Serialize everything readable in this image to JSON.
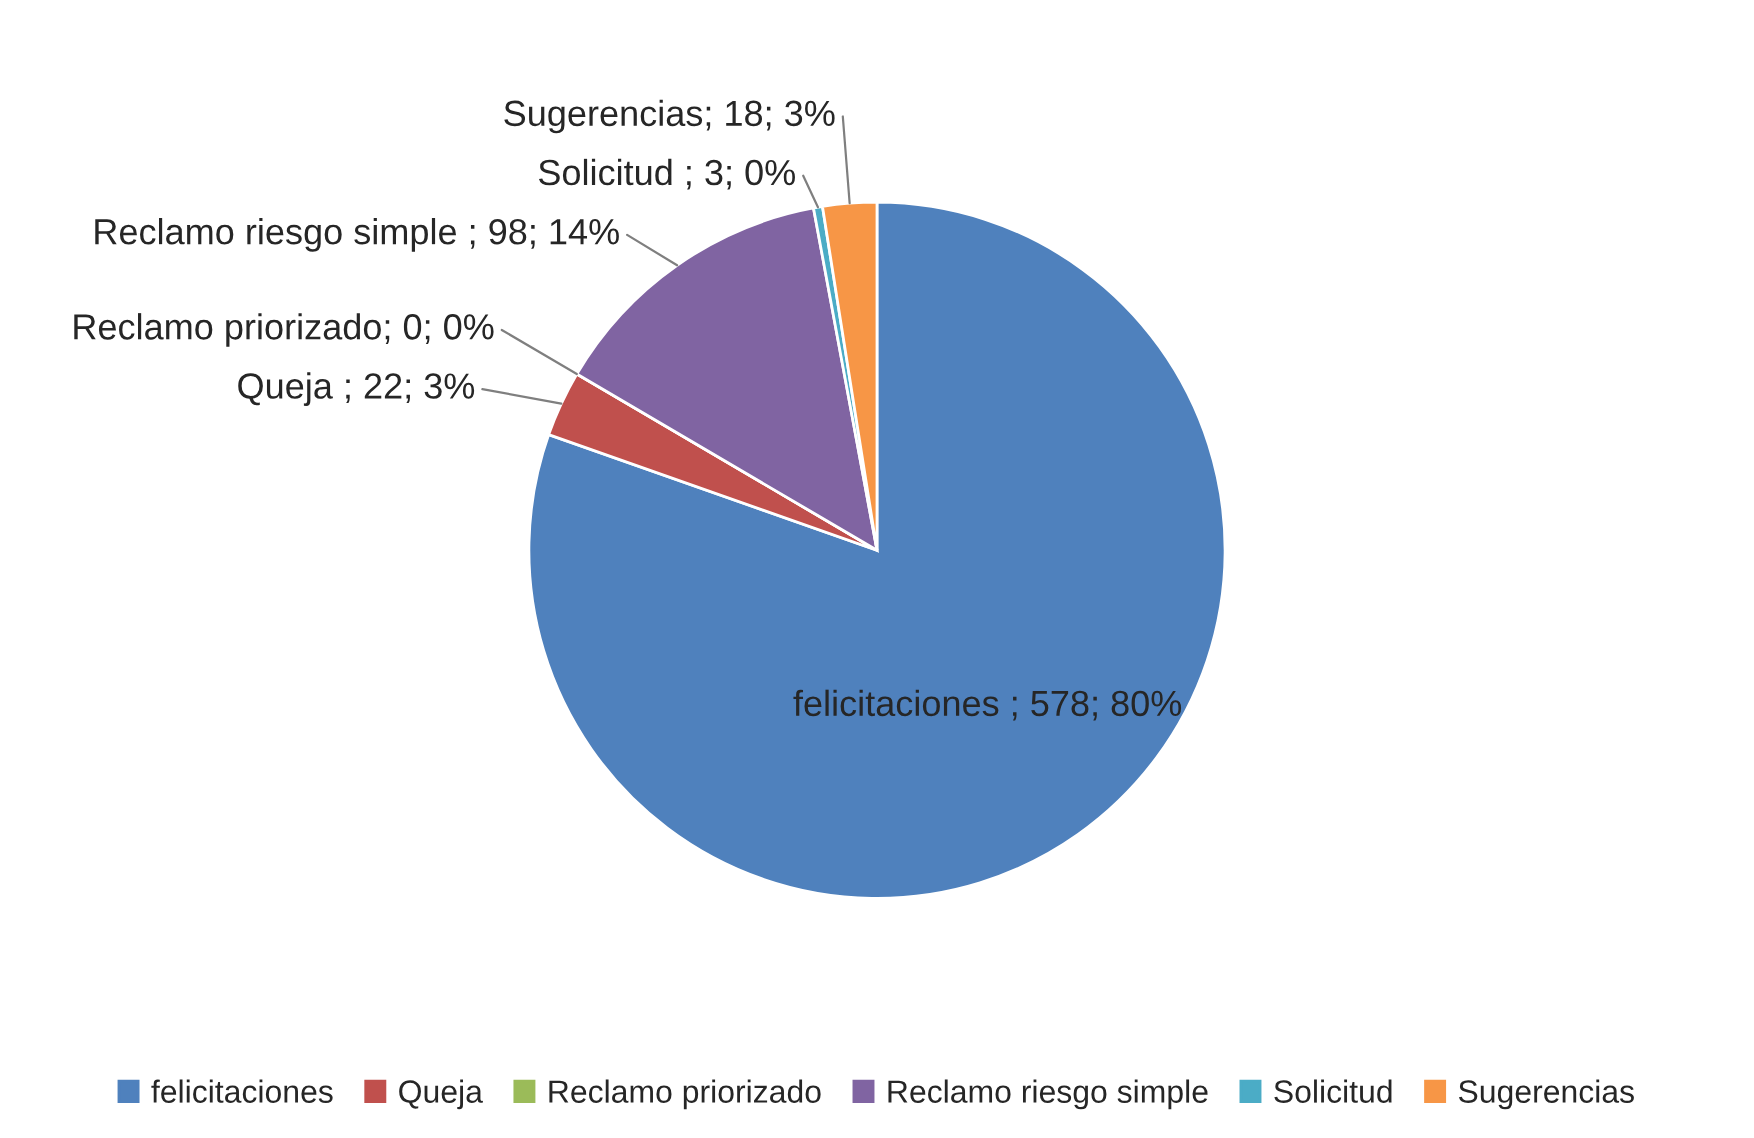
{
  "chart_data": {
    "type": "pie",
    "categories": [
      "felicitaciones",
      "Queja",
      "Reclamo priorizado",
      "Reclamo riesgo simple",
      "Solicitud",
      "Sugerencias"
    ],
    "values": [
      578,
      22,
      0,
      98,
      3,
      18
    ],
    "colors": [
      "#4f81bd",
      "#c0504d",
      "#9bbb59",
      "#8064a2",
      "#4bacc6",
      "#f79646"
    ],
    "value_labels": [
      "felicitaciones ; 578; 80%",
      "Queja ; 22; 3%",
      "Reclamo priorizado; 0; 0%",
      "Reclamo riesgo simple ; 98; 14%",
      "Solicitud ; 3; 0%",
      "Sugerencias; 18; 3%"
    ],
    "legend": "bottom"
  }
}
